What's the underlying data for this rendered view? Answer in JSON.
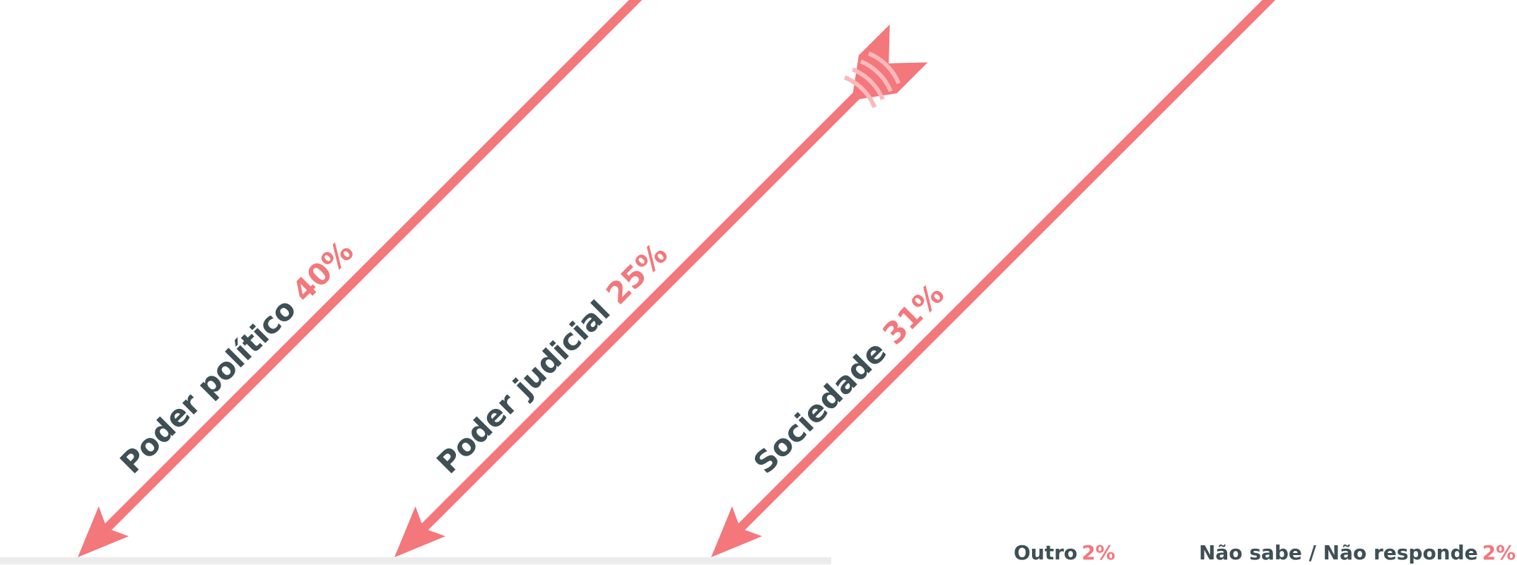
{
  "colors": {
    "arrow": "#f3777b",
    "fletch_stripe": "#fbb9bc",
    "text": "#3e4f55",
    "accent": "#f3777b",
    "ground": "#ececec"
  },
  "chart_data": {
    "type": "bar",
    "categories": [
      "Poder político",
      "Poder judicial",
      "Sociedade",
      "Outro",
      "Não sabe / Não responde"
    ],
    "values": [
      40,
      25,
      31,
      2,
      2
    ],
    "value_labels": [
      "40%",
      "25%",
      "31%",
      "2%",
      "2%"
    ],
    "unit": "%"
  }
}
